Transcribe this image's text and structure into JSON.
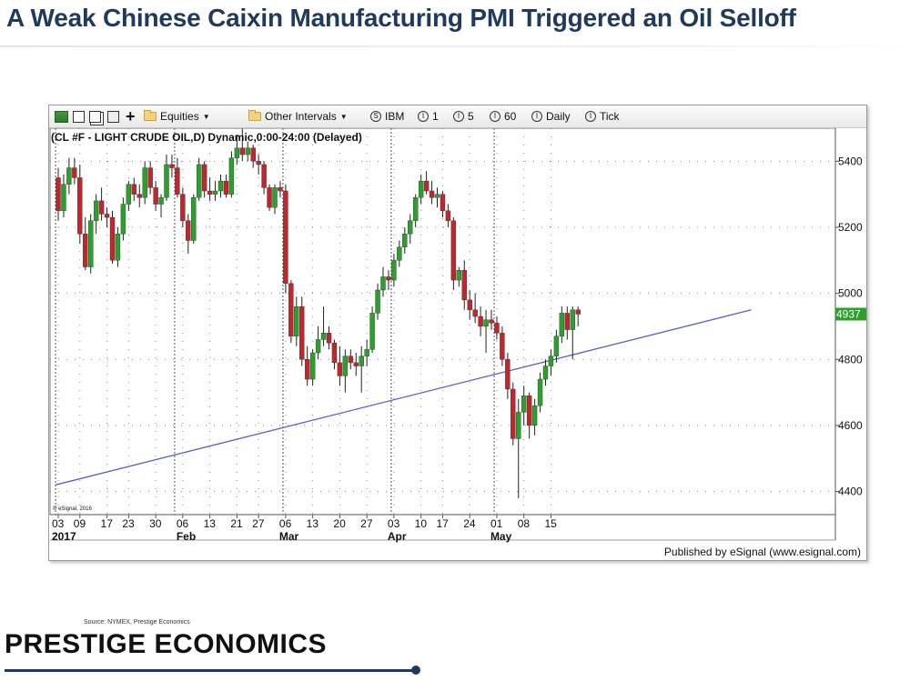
{
  "slide": {
    "title": "A Weak Chinese Caixin Manufacturing PMI Triggered an Oil Selloff",
    "source_text": "Source: NYMEX, Prestige Economics",
    "logo_text": "PRESTIGE ECONOMICS",
    "accent_color": "#1f3a5a"
  },
  "toolbar": {
    "items": [
      {
        "label": "Equities",
        "icon": "folder-icon",
        "dropdown": true
      },
      {
        "label": "Other Intervals",
        "icon": "folder-icon",
        "dropdown": true
      },
      {
        "label": "IBM",
        "icon": "circle-s-icon"
      },
      {
        "label": "1",
        "icon": "circle-i-icon"
      },
      {
        "label": "5",
        "icon": "circle-i-icon"
      },
      {
        "label": "60",
        "icon": "circle-i-icon"
      },
      {
        "label": "Daily",
        "icon": "circle-i-icon"
      },
      {
        "label": "Tick",
        "icon": "circle-i-icon"
      }
    ]
  },
  "published_text": "Published by eSignal (www.esignal.com)",
  "chart_data": {
    "type": "candlestick",
    "title": "(CL #F - LIGHT CRUDE OIL,D) Dynamic,0:00-24:00 (Delayed)",
    "copyright": "© eSignal, 2016",
    "y_ticks": [
      4400,
      4600,
      4800,
      5000,
      5200,
      5400
    ],
    "ylim": [
      4330,
      5500
    ],
    "x_ticks": [
      {
        "label": "03",
        "sub": "2017",
        "i": 0
      },
      {
        "label": "09",
        "i": 4
      },
      {
        "label": "17",
        "i": 9
      },
      {
        "label": "23",
        "i": 13
      },
      {
        "label": "30",
        "i": 18
      },
      {
        "label": "06",
        "sub": "Feb",
        "i": 23
      },
      {
        "label": "13",
        "i": 28
      },
      {
        "label": "21",
        "i": 33
      },
      {
        "label": "27",
        "i": 37
      },
      {
        "label": "06",
        "sub": "Mar",
        "i": 42
      },
      {
        "label": "13",
        "i": 47
      },
      {
        "label": "20",
        "i": 52
      },
      {
        "label": "27",
        "i": 57
      },
      {
        "label": "03",
        "sub": "Apr",
        "i": 62
      },
      {
        "label": "10",
        "i": 67
      },
      {
        "label": "17",
        "i": 71
      },
      {
        "label": "24",
        "i": 76
      },
      {
        "label": "01",
        "sub": "May",
        "i": 81
      },
      {
        "label": "08",
        "i": 86
      },
      {
        "label": "15",
        "i": 91
      }
    ],
    "month_lines": [
      -0.5,
      21.5,
      41.5,
      61.5,
      80.5
    ],
    "last_price": "4937",
    "up_color": "#2ca02c",
    "down_color": "#c0262d",
    "trendline_color": "#5b5bd6",
    "trendline": {
      "start": [
        -0.5,
        4420
      ],
      "end": [
        128,
        4950
      ]
    },
    "candles": [
      [
        5350,
        5380,
        5220,
        5250
      ],
      [
        5250,
        5360,
        5230,
        5330
      ],
      [
        5330,
        5410,
        5300,
        5380
      ],
      [
        5380,
        5410,
        5330,
        5350
      ],
      [
        5350,
        5390,
        5150,
        5180
      ],
      [
        5180,
        5230,
        5070,
        5080
      ],
      [
        5080,
        5240,
        5060,
        5220
      ],
      [
        5220,
        5300,
        5180,
        5280
      ],
      [
        5280,
        5320,
        5220,
        5240
      ],
      [
        5240,
        5260,
        5200,
        5230
      ],
      [
        5230,
        5250,
        5090,
        5100
      ],
      [
        5100,
        5200,
        5080,
        5180
      ],
      [
        5180,
        5290,
        5160,
        5270
      ],
      [
        5270,
        5340,
        5250,
        5330
      ],
      [
        5330,
        5350,
        5280,
        5300
      ],
      [
        5300,
        5330,
        5260,
        5290
      ],
      [
        5290,
        5400,
        5270,
        5380
      ],
      [
        5380,
        5400,
        5300,
        5320
      ],
      [
        5320,
        5340,
        5250,
        5270
      ],
      [
        5270,
        5300,
        5230,
        5290
      ],
      [
        5290,
        5420,
        5280,
        5390
      ],
      [
        5390,
        5420,
        5350,
        5380
      ],
      [
        5380,
        5410,
        5290,
        5300
      ],
      [
        5300,
        5320,
        5200,
        5220
      ],
      [
        5220,
        5240,
        5120,
        5160
      ],
      [
        5160,
        5300,
        5150,
        5290
      ],
      [
        5290,
        5410,
        5280,
        5390
      ],
      [
        5390,
        5400,
        5290,
        5310
      ],
      [
        5310,
        5350,
        5280,
        5300
      ],
      [
        5300,
        5340,
        5280,
        5310
      ],
      [
        5310,
        5360,
        5290,
        5340
      ],
      [
        5340,
        5360,
        5290,
        5300
      ],
      [
        5300,
        5430,
        5290,
        5410
      ],
      [
        5410,
        5480,
        5390,
        5440
      ],
      [
        5440,
        5500,
        5400,
        5420
      ],
      [
        5420,
        5460,
        5400,
        5440
      ],
      [
        5440,
        5450,
        5380,
        5400
      ],
      [
        5400,
        5420,
        5360,
        5390
      ],
      [
        5390,
        5400,
        5300,
        5320
      ],
      [
        5320,
        5330,
        5250,
        5260
      ],
      [
        5260,
        5330,
        5240,
        5320
      ],
      [
        5320,
        5340,
        5290,
        5310
      ],
      [
        5310,
        5330,
        5000,
        5030
      ],
      [
        5030,
        5040,
        4850,
        4870
      ],
      [
        4870,
        4990,
        4840,
        4960
      ],
      [
        4960,
        4990,
        4780,
        4800
      ],
      [
        4800,
        4840,
        4720,
        4740
      ],
      [
        4740,
        4830,
        4720,
        4820
      ],
      [
        4820,
        4900,
        4800,
        4860
      ],
      [
        4860,
        4960,
        4840,
        4880
      ],
      [
        4880,
        4900,
        4830,
        4850
      ],
      [
        4850,
        4860,
        4770,
        4790
      ],
      [
        4790,
        4840,
        4720,
        4750
      ],
      [
        4750,
        4830,
        4700,
        4810
      ],
      [
        4810,
        4830,
        4770,
        4790
      ],
      [
        4790,
        4820,
        4750,
        4780
      ],
      [
        4780,
        4840,
        4700,
        4810
      ],
      [
        4810,
        4860,
        4780,
        4830
      ],
      [
        4830,
        4960,
        4820,
        4940
      ],
      [
        4940,
        5030,
        4920,
        5010
      ],
      [
        5010,
        5080,
        4990,
        5050
      ],
      [
        5050,
        5070,
        5010,
        5040
      ],
      [
        5040,
        5120,
        5020,
        5100
      ],
      [
        5100,
        5160,
        5080,
        5140
      ],
      [
        5140,
        5200,
        5120,
        5180
      ],
      [
        5180,
        5240,
        5150,
        5220
      ],
      [
        5220,
        5300,
        5200,
        5290
      ],
      [
        5290,
        5360,
        5270,
        5340
      ],
      [
        5340,
        5370,
        5300,
        5310
      ],
      [
        5310,
        5340,
        5270,
        5290
      ],
      [
        5290,
        5320,
        5260,
        5300
      ],
      [
        5300,
        5310,
        5230,
        5250
      ],
      [
        5250,
        5270,
        5200,
        5220
      ],
      [
        5220,
        5230,
        5010,
        5040
      ],
      [
        5040,
        5080,
        5020,
        5070
      ],
      [
        5070,
        5100,
        4950,
        4980
      ],
      [
        4980,
        5010,
        4920,
        4950
      ],
      [
        4950,
        5000,
        4910,
        4930
      ],
      [
        4930,
        4960,
        4870,
        4900
      ],
      [
        4900,
        4950,
        4820,
        4920
      ],
      [
        4920,
        4950,
        4890,
        4910
      ],
      [
        4910,
        4930,
        4860,
        4880
      ],
      [
        4880,
        4900,
        4780,
        4800
      ],
      [
        4800,
        4820,
        4680,
        4710
      ],
      [
        4710,
        4730,
        4540,
        4560
      ],
      [
        4560,
        4680,
        4380,
        4640
      ],
      [
        4640,
        4720,
        4600,
        4690
      ],
      [
        4690,
        4700,
        4560,
        4600
      ],
      [
        4600,
        4680,
        4570,
        4660
      ],
      [
        4660,
        4760,
        4640,
        4740
      ],
      [
        4740,
        4800,
        4720,
        4780
      ],
      [
        4780,
        4830,
        4750,
        4810
      ],
      [
        4810,
        4890,
        4790,
        4870
      ],
      [
        4870,
        4960,
        4850,
        4940
      ],
      [
        4940,
        4960,
        4860,
        4890
      ],
      [
        4890,
        4960,
        4800,
        4950
      ],
      [
        4950,
        4960,
        4900,
        4937
      ]
    ]
  }
}
